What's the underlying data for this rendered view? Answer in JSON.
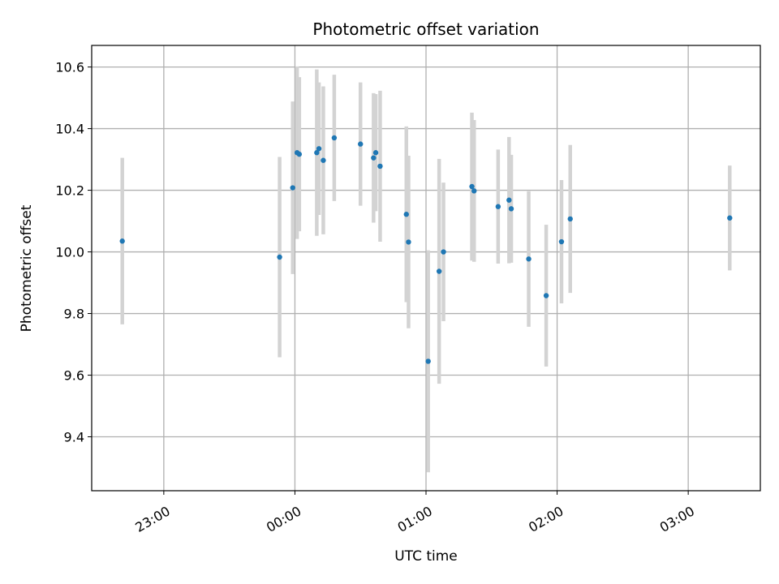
{
  "chart_data": {
    "type": "scatter",
    "title": "Photometric offset variation",
    "xlabel": "UTC time",
    "ylabel": "Photometric offset",
    "x_unit": "UTC time (HH:MM), axis spans 22:27 to 03:33 of the next day",
    "x_ticks": [
      "23:00",
      "00:00",
      "01:00",
      "02:00",
      "03:00"
    ],
    "y_ticks": [
      "9.4",
      "9.6",
      "9.8",
      "10.0",
      "10.2",
      "10.4",
      "10.6"
    ],
    "xlim": [
      "22:27",
      "03:33"
    ],
    "ylim": [
      9.225,
      10.67
    ],
    "grid": true,
    "legend": "none",
    "colors": {
      "point": "#1f77b4",
      "error_bar": "#d3d3d3",
      "grid": "#b0b0b0"
    },
    "series": [
      {
        "points": [
          {
            "t": "22:41",
            "y": 10.035,
            "err": 0.27
          },
          {
            "t": "23:53",
            "y": 9.983,
            "err": 0.325
          },
          {
            "t": "23:59",
            "y": 10.208,
            "err": 0.28
          },
          {
            "t": "00:01",
            "y": 10.322,
            "err": 0.28
          },
          {
            "t": "00:02",
            "y": 10.317,
            "err": 0.25
          },
          {
            "t": "00:10",
            "y": 10.322,
            "err": 0.27
          },
          {
            "t": "00:11",
            "y": 10.335,
            "err": 0.215
          },
          {
            "t": "00:13",
            "y": 10.297,
            "err": 0.24
          },
          {
            "t": "00:18",
            "y": 10.37,
            "err": 0.205
          },
          {
            "t": "00:30",
            "y": 10.35,
            "err": 0.2
          },
          {
            "t": "00:36",
            "y": 10.305,
            "err": 0.21
          },
          {
            "t": "00:37",
            "y": 10.322,
            "err": 0.19
          },
          {
            "t": "00:39",
            "y": 10.278,
            "err": 0.245
          },
          {
            "t": "00:51",
            "y": 10.122,
            "err": 0.285
          },
          {
            "t": "00:52",
            "y": 10.032,
            "err": 0.28
          },
          {
            "t": "01:01",
            "y": 9.645,
            "err": 0.36
          },
          {
            "t": "01:06",
            "y": 9.937,
            "err": 0.365
          },
          {
            "t": "01:08",
            "y": 10.0,
            "err": 0.225
          },
          {
            "t": "01:21",
            "y": 10.212,
            "err": 0.24
          },
          {
            "t": "01:22",
            "y": 10.198,
            "err": 0.23
          },
          {
            "t": "01:33",
            "y": 10.147,
            "err": 0.185
          },
          {
            "t": "01:38",
            "y": 10.168,
            "err": 0.205
          },
          {
            "t": "01:39",
            "y": 10.14,
            "err": 0.175
          },
          {
            "t": "01:47",
            "y": 9.977,
            "err": 0.22
          },
          {
            "t": "01:55",
            "y": 9.858,
            "err": 0.23
          },
          {
            "t": "02:02",
            "y": 10.033,
            "err": 0.2
          },
          {
            "t": "02:06",
            "y": 10.107,
            "err": 0.24
          },
          {
            "t": "03:19",
            "y": 10.11,
            "err": 0.17
          }
        ]
      }
    ]
  }
}
